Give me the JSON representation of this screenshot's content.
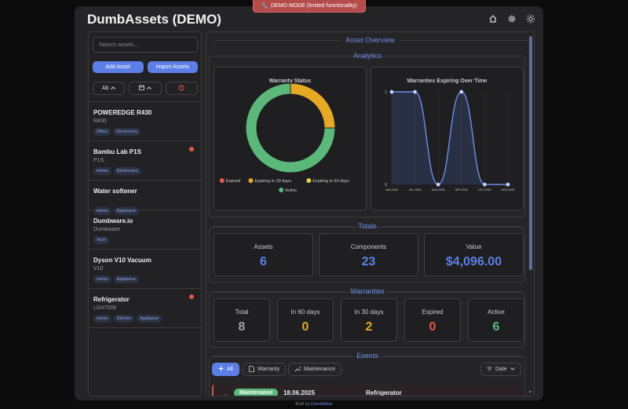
{
  "demo_banner": "DEMO MODE (limited functionality)",
  "app_title": "DumbAssets (DEMO)",
  "sidebar": {
    "search_placeholder": "Search assets...",
    "add_asset": "Add Asset",
    "import_assets": "Import Assets",
    "sort_name": "Ab",
    "assets": [
      {
        "name": "POWEREDGE R430",
        "model": "R430",
        "tags": [
          "Office",
          "Electronics"
        ],
        "alert": false
      },
      {
        "name": "Bambu Lab P1S",
        "model": "P1S",
        "tags": [
          "Home",
          "Electronics"
        ],
        "alert": true
      },
      {
        "name": "Water softener",
        "model": "",
        "tags": [
          "Home",
          "Appliance"
        ],
        "alert": false
      },
      {
        "name": "Dumbware.io",
        "model": "Dumbware",
        "tags": [
          "Tech"
        ],
        "alert": false
      },
      {
        "name": "Dyson V10 Vacuum",
        "model": "V10",
        "tags": [
          "Home",
          "Appliance"
        ],
        "alert": false
      },
      {
        "name": "Refrigerator",
        "model": "LG47539",
        "tags": [
          "Home",
          "Kitchen",
          "Appliance"
        ],
        "alert": true
      }
    ]
  },
  "main": {
    "overview_title": "Asset Overview",
    "analytics_title": "Analytics",
    "totals_title": "Totals",
    "warranties_title": "Warranties",
    "events_title": "Events"
  },
  "chart_data": [
    {
      "type": "pie",
      "title": "Warranty Status",
      "categories": [
        "Expired",
        "Expiring in 30 days",
        "Expiring in 60 days",
        "Active"
      ],
      "values": [
        0,
        2,
        0,
        6
      ],
      "colors": [
        "#e05a4a",
        "#e5a925",
        "#ead04a",
        "#5cb87a"
      ],
      "legend": "bottom"
    },
    {
      "type": "line",
      "title": "Warranties Expiring Over Time",
      "categories": [
        "JUN-2025",
        "JUL-2025",
        "AUG-2025",
        "SEP-2025",
        "OCT-2025",
        "NOV-2025"
      ],
      "values": [
        1,
        1,
        0,
        1,
        0,
        0
      ],
      "ylim": [
        0,
        1
      ],
      "color": "#6c8de6"
    }
  ],
  "totals": [
    {
      "label": "Assets",
      "value": "6"
    },
    {
      "label": "Components",
      "value": "23"
    },
    {
      "label": "Value",
      "value": "$4,096.00"
    }
  ],
  "warranties": [
    {
      "label": "Total",
      "value": "8",
      "color": "#9aa0ab"
    },
    {
      "label": "In 60 days",
      "value": "0",
      "color": "#e5a925"
    },
    {
      "label": "In 30 days",
      "value": "2",
      "color": "#e5a925"
    },
    {
      "label": "Expired",
      "value": "0",
      "color": "#e05a4a"
    },
    {
      "label": "Active",
      "value": "6",
      "color": "#5cb87a"
    }
  ],
  "events": {
    "filter_all": "All",
    "filter_warranty": "Warranty",
    "filter_maintenance": "Maintenance",
    "sort_date": "Date",
    "first_row": {
      "badge": "Maintenance",
      "date": "18.06.2025",
      "asset": "Refrigerator"
    }
  },
  "footer": {
    "prefix": "Built by",
    "link": "DumbWare"
  }
}
